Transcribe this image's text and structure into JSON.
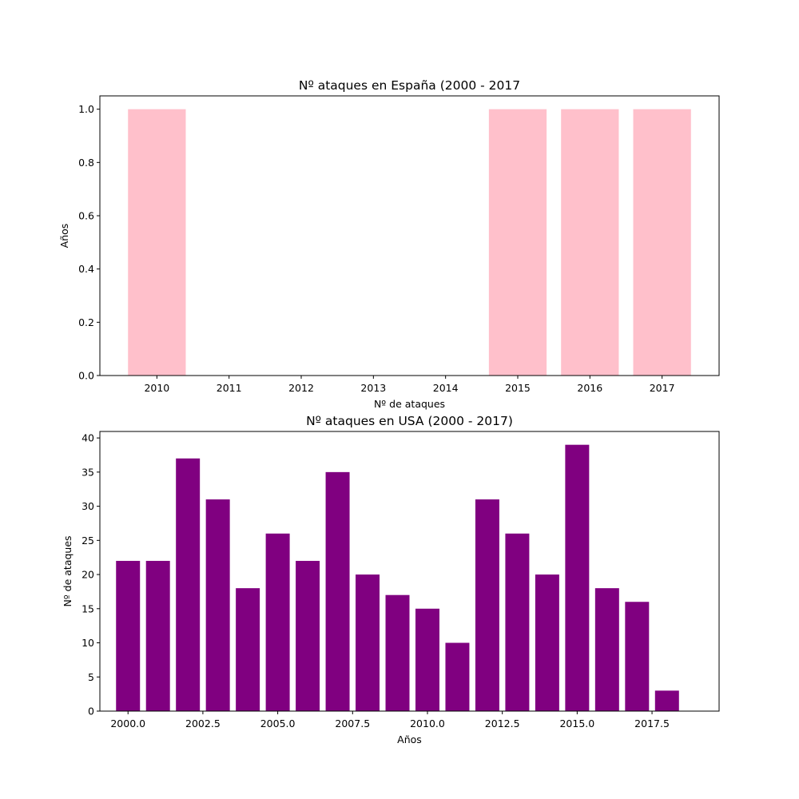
{
  "chart_data": [
    {
      "type": "bar",
      "title": "Nº ataques en España (2000 - 2017",
      "xlabel": "Nº de ataques",
      "ylabel": "Años",
      "color": "#ffc0cb",
      "categories": [
        "2010",
        "2011",
        "2012",
        "2013",
        "2014",
        "2015",
        "2016",
        "2017"
      ],
      "values": [
        1,
        0,
        0,
        0,
        0,
        1,
        1,
        1
      ],
      "ylim": [
        0,
        1.05
      ],
      "yticks": [
        0.0,
        0.2,
        0.4,
        0.6,
        0.8,
        1.0
      ],
      "ytick_labels": [
        "0.0",
        "0.2",
        "0.4",
        "0.6",
        "0.8",
        "1.0"
      ],
      "grid": false
    },
    {
      "type": "bar",
      "title": "Nº ataques en USA (2000 - 2017)",
      "xlabel": "Años",
      "ylabel": "Nº de ataques",
      "color": "#800080",
      "x": [
        2000,
        2001,
        2002,
        2003,
        2004,
        2005,
        2006,
        2007,
        2008,
        2009,
        2010,
        2011,
        2012,
        2013,
        2014,
        2015,
        2016,
        2017,
        2018
      ],
      "values": [
        22,
        22,
        37,
        31,
        18,
        26,
        22,
        35,
        20,
        17,
        15,
        10,
        31,
        26,
        20,
        39,
        18,
        16,
        3
      ],
      "bar_width": 0.8,
      "xlim": [
        1999.06,
        2019.74
      ],
      "ylim": [
        0,
        40.95
      ],
      "xticks": [
        2000.0,
        2002.5,
        2005.0,
        2007.5,
        2010.0,
        2012.5,
        2015.0,
        2017.5
      ],
      "xtick_labels": [
        "2000.0",
        "2002.5",
        "2005.0",
        "2007.5",
        "2010.0",
        "2012.5",
        "2015.0",
        "2017.5"
      ],
      "yticks": [
        0,
        5,
        10,
        15,
        20,
        25,
        30,
        35,
        40
      ],
      "ytick_labels": [
        "0",
        "5",
        "10",
        "15",
        "20",
        "25",
        "30",
        "35",
        "40"
      ],
      "grid": false
    }
  ]
}
